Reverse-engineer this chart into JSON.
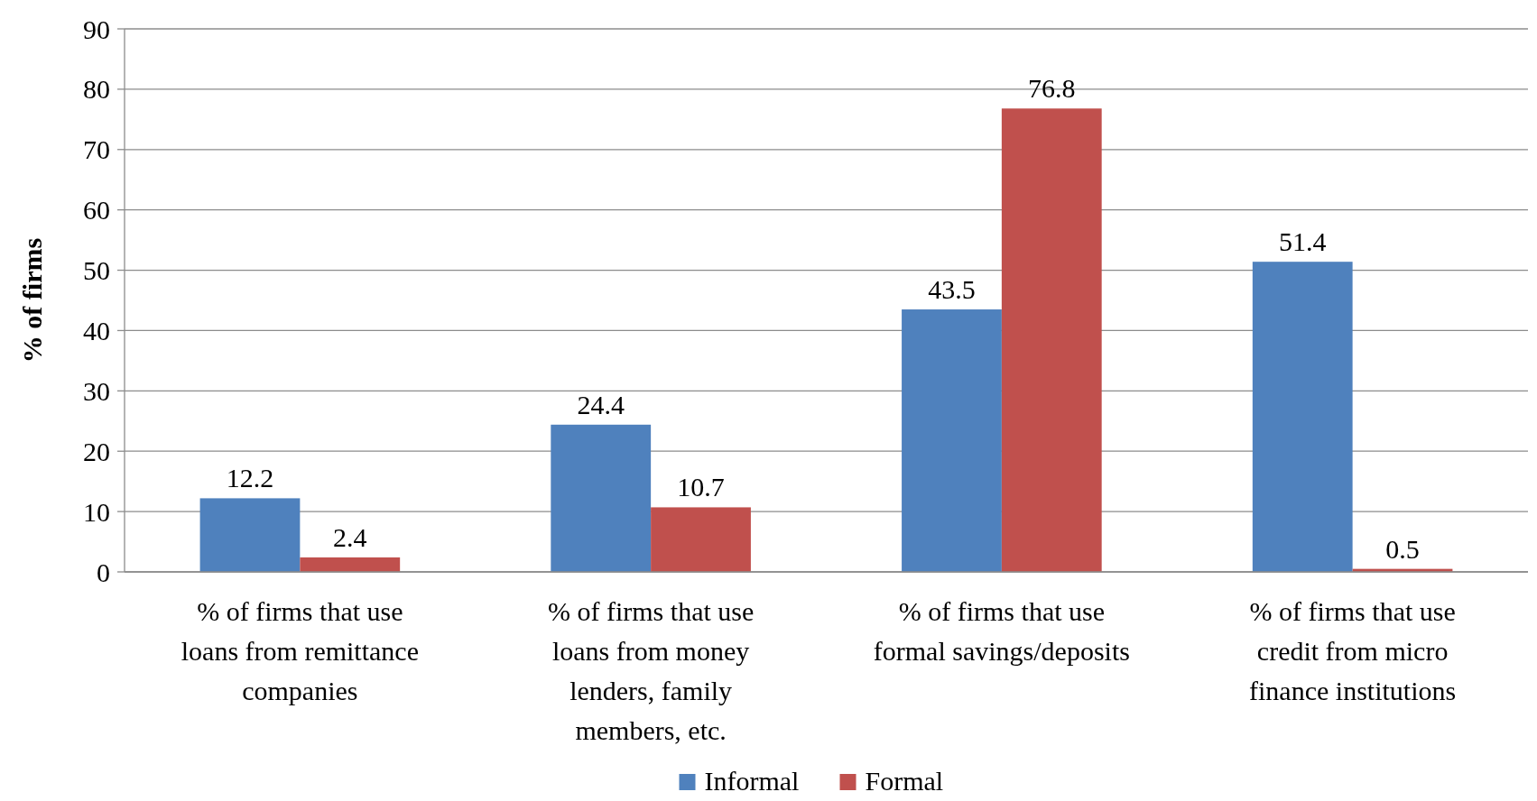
{
  "chart_data": {
    "type": "bar",
    "ylabel": "% of firms",
    "categories": [
      "% of firms that use loans from remittance companies",
      "% of firms that use loans from money lenders, family members, etc.",
      "% of firms that use formal savings/deposits",
      "% of firms that use credit from micro finance institutions"
    ],
    "series": [
      {
        "name": "Informal",
        "color": "#4f81bd",
        "values": [
          12.2,
          24.4,
          43.5,
          51.4
        ]
      },
      {
        "name": "Formal",
        "color": "#c0504d",
        "values": [
          2.4,
          10.7,
          76.8,
          0.5
        ]
      }
    ],
    "ylim": [
      0,
      90
    ],
    "yticks": [
      0,
      10,
      20,
      30,
      40,
      50,
      60,
      70,
      80,
      90
    ],
    "grid": "y",
    "legend": "bottom",
    "data_labels": true
  }
}
